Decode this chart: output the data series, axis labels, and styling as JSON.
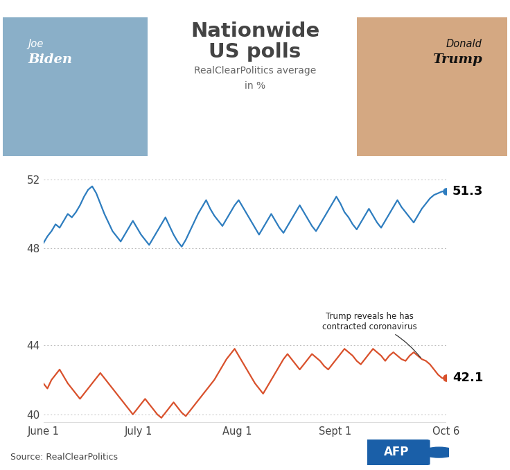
{
  "title_line1": "Nationwide",
  "title_line2": "US polls",
  "subtitle": "RealClearPolitics average\nin %",
  "biden_label_top": "Joe",
  "biden_label_bottom": "Biden",
  "trump_label_top": "Donald",
  "trump_label_bottom": "Trump",
  "source": "Source: RealClearPolitics",
  "afp_text": "AFP",
  "biden_final": 51.3,
  "trump_final": 42.1,
  "annotation_text": "Trump reveals he has\ncontracted coronavirus",
  "biden_color": "#2e7dbf",
  "trump_color": "#d9512c",
  "bg_color": "#ffffff",
  "grid_color": "#bbbbbb",
  "axis_label_color": "#444444",
  "title_color": "#444444",
  "subtitle_color": "#666666",
  "afp_blue": "#1a5fa8",
  "x_tick_labels": [
    "June 1",
    "July 1",
    "Aug 1",
    "Sept 1",
    "Oct 6"
  ],
  "biden_ylim": [
    47.0,
    53.0
  ],
  "trump_ylim": [
    39.5,
    45.5
  ],
  "biden_yticks": [
    48,
    52
  ],
  "trump_yticks": [
    40,
    44
  ],
  "header_biden_bg": "#b0cce0",
  "header_trump_bg": "#e8c4a0",
  "biden_data": [
    48.3,
    48.7,
    49.0,
    49.4,
    49.2,
    49.6,
    50.0,
    49.8,
    50.1,
    50.5,
    51.0,
    51.4,
    51.6,
    51.2,
    50.6,
    50.0,
    49.5,
    49.0,
    48.7,
    48.4,
    48.8,
    49.2,
    49.6,
    49.2,
    48.8,
    48.5,
    48.2,
    48.6,
    49.0,
    49.4,
    49.8,
    49.3,
    48.8,
    48.4,
    48.1,
    48.5,
    49.0,
    49.5,
    50.0,
    50.4,
    50.8,
    50.3,
    49.9,
    49.6,
    49.3,
    49.7,
    50.1,
    50.5,
    50.8,
    50.4,
    50.0,
    49.6,
    49.2,
    48.8,
    49.2,
    49.6,
    50.0,
    49.6,
    49.2,
    48.9,
    49.3,
    49.7,
    50.1,
    50.5,
    50.1,
    49.7,
    49.3,
    49.0,
    49.4,
    49.8,
    50.2,
    50.6,
    51.0,
    50.6,
    50.1,
    49.8,
    49.4,
    49.1,
    49.5,
    49.9,
    50.3,
    49.9,
    49.5,
    49.2,
    49.6,
    50.0,
    50.4,
    50.8,
    50.4,
    50.1,
    49.8,
    49.5,
    49.9,
    50.3,
    50.6,
    50.9,
    51.1,
    51.2,
    51.3,
    51.3
  ],
  "trump_data": [
    41.8,
    41.5,
    42.0,
    42.3,
    42.6,
    42.2,
    41.8,
    41.5,
    41.2,
    40.9,
    41.2,
    41.5,
    41.8,
    42.1,
    42.4,
    42.1,
    41.8,
    41.5,
    41.2,
    40.9,
    40.6,
    40.3,
    40.0,
    40.3,
    40.6,
    40.9,
    40.6,
    40.3,
    40.0,
    39.8,
    40.1,
    40.4,
    40.7,
    40.4,
    40.1,
    39.9,
    40.2,
    40.5,
    40.8,
    41.1,
    41.4,
    41.7,
    42.0,
    42.4,
    42.8,
    43.2,
    43.5,
    43.8,
    43.4,
    43.0,
    42.6,
    42.2,
    41.8,
    41.5,
    41.2,
    41.6,
    42.0,
    42.4,
    42.8,
    43.2,
    43.5,
    43.2,
    42.9,
    42.6,
    42.9,
    43.2,
    43.5,
    43.3,
    43.1,
    42.8,
    42.6,
    42.9,
    43.2,
    43.5,
    43.8,
    43.6,
    43.4,
    43.1,
    42.9,
    43.2,
    43.5,
    43.8,
    43.6,
    43.4,
    43.1,
    43.4,
    43.6,
    43.4,
    43.2,
    43.1,
    43.4,
    43.6,
    43.4,
    43.2,
    43.1,
    42.9,
    42.6,
    42.3,
    42.1,
    42.1
  ]
}
